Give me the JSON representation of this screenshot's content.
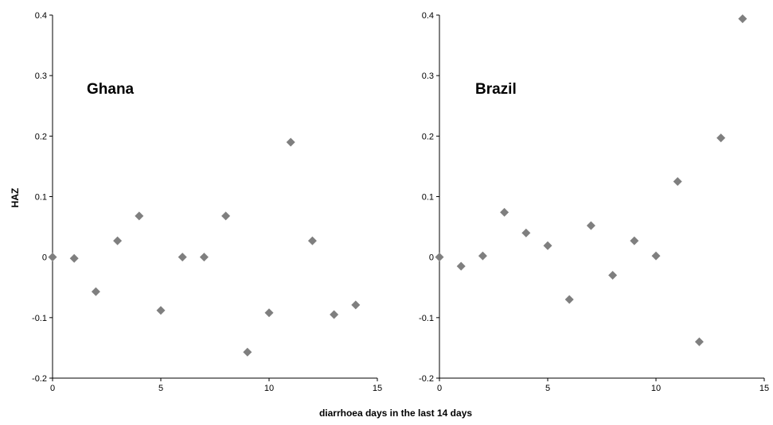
{
  "figure": {
    "ylabel": "HAZ",
    "xlabel": "diarrhoea days in the last 14 days"
  },
  "chart_data": [
    {
      "type": "scatter",
      "title": "Ghana",
      "xlabel": "diarrhoea days in the last 14 days",
      "ylabel": "HAZ",
      "xlim": [
        0,
        15
      ],
      "ylim": [
        -0.2,
        0.4
      ],
      "xticks": [
        0,
        5,
        10,
        15
      ],
      "yticks": [
        -0.2,
        -0.1,
        0,
        0.1,
        0.2,
        0.3,
        0.4
      ],
      "grid": false,
      "marker_color": "#7f7f7f",
      "x": [
        0,
        1,
        2,
        3,
        4,
        5,
        6,
        7,
        8,
        9,
        10,
        11,
        12,
        13,
        14
      ],
      "y": [
        0.0,
        -0.002,
        -0.057,
        0.027,
        0.068,
        -0.088,
        0.0,
        0.0,
        0.068,
        -0.157,
        -0.092,
        0.19,
        0.027,
        -0.095,
        -0.079
      ]
    },
    {
      "type": "scatter",
      "title": "Brazil",
      "xlabel": "diarrhoea days in the last 14 days",
      "ylabel": "",
      "xlim": [
        0,
        15
      ],
      "ylim": [
        -0.2,
        0.4
      ],
      "xticks": [
        0,
        5,
        10,
        15
      ],
      "yticks": [
        -0.2,
        -0.1,
        0,
        0.1,
        0.2,
        0.3,
        0.4
      ],
      "grid": false,
      "marker_color": "#7f7f7f",
      "x": [
        0,
        1,
        2,
        3,
        4,
        5,
        6,
        7,
        8,
        9,
        10,
        11,
        12,
        13,
        14
      ],
      "y": [
        0.0,
        -0.015,
        0.002,
        0.074,
        0.04,
        0.019,
        -0.07,
        0.052,
        -0.03,
        0.027,
        0.002,
        0.125,
        -0.14,
        0.197,
        0.394
      ]
    }
  ]
}
